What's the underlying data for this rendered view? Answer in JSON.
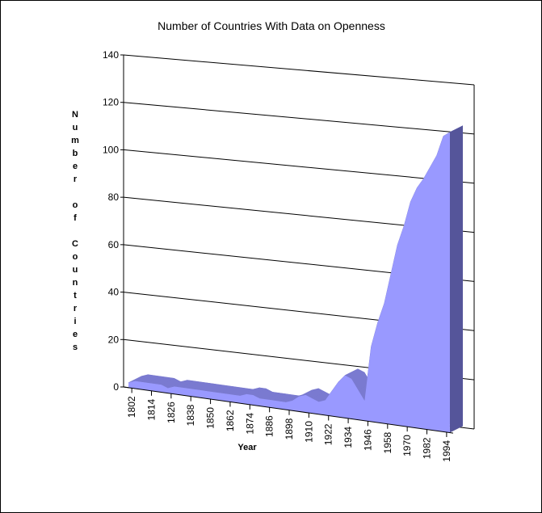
{
  "chart_data": {
    "type": "area3d",
    "title": "Number of Countries With Data on Openness",
    "x_label": "Year",
    "y_label": "Number of Countries",
    "x": [
      1800,
      1804,
      1808,
      1812,
      1816,
      1820,
      1824,
      1828,
      1832,
      1836,
      1840,
      1844,
      1848,
      1852,
      1856,
      1860,
      1864,
      1868,
      1872,
      1876,
      1880,
      1884,
      1888,
      1892,
      1896,
      1900,
      1904,
      1908,
      1912,
      1916,
      1920,
      1924,
      1928,
      1932,
      1936,
      1940,
      1944,
      1948,
      1952,
      1956,
      1960,
      1964,
      1968,
      1972,
      1976,
      1980,
      1984,
      1988,
      1992,
      1996
    ],
    "values": [
      2,
      3,
      3,
      3,
      3,
      3,
      2,
      3,
      3,
      3,
      3,
      3,
      3,
      3,
      3,
      3,
      3,
      3,
      4,
      4,
      3,
      3,
      3,
      3,
      3,
      4,
      6,
      7,
      6,
      5,
      6,
      10,
      14,
      17,
      16,
      12,
      8,
      30,
      40,
      48,
      60,
      72,
      80,
      90,
      96,
      100,
      105,
      110,
      118,
      120
    ],
    "color": "#9999ff",
    "xlim": [
      1797,
      1998
    ],
    "xticks": [
      1802,
      1814,
      1826,
      1838,
      1850,
      1862,
      1874,
      1886,
      1898,
      1910,
      1922,
      1934,
      1946,
      1958,
      1970,
      1982,
      1994
    ],
    "ylim": [
      0,
      140
    ],
    "yticks": [
      0,
      20,
      40,
      60,
      80,
      100,
      120,
      140
    ],
    "grid": true
  }
}
